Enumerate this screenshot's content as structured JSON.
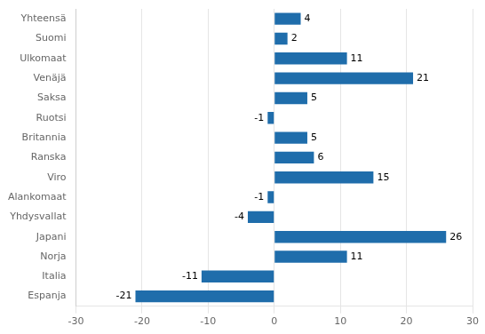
{
  "chart_data": {
    "type": "bar",
    "orientation": "horizontal",
    "categories": [
      "Yhteensä",
      "Suomi",
      "Ulkomaat",
      "Venäjä",
      "Saksa",
      "Ruotsi",
      "Britannia",
      "Ranska",
      "Viro",
      "Alankomaat",
      "Yhdysvallat",
      "Japani",
      "Norja",
      "Italia",
      "Espanja"
    ],
    "values": [
      4,
      2,
      11,
      21,
      5,
      -1,
      5,
      6,
      15,
      -1,
      -4,
      26,
      11,
      -11,
      -21
    ],
    "color": "#1F6DAB",
    "xlim": [
      -30,
      30
    ],
    "xticks": [
      -30,
      -20,
      -10,
      0,
      10,
      20,
      30
    ],
    "grid": true,
    "data_labels": true
  }
}
